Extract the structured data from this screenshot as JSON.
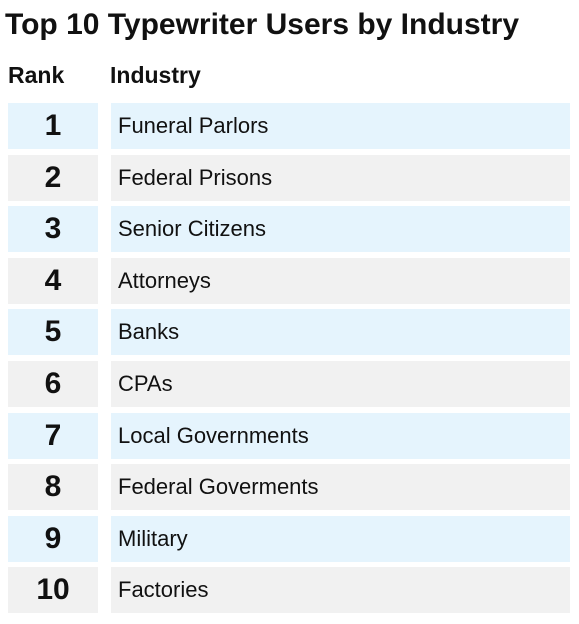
{
  "chart_data": {
    "type": "table",
    "title": "Top 10 Typewriter Users by Industry",
    "columns": [
      "Rank",
      "Industry"
    ],
    "rows": [
      {
        "rank": "1",
        "industry": "Funeral Parlors"
      },
      {
        "rank": "2",
        "industry": "Federal Prisons"
      },
      {
        "rank": "3",
        "industry": "Senior Citizens"
      },
      {
        "rank": "4",
        "industry": "Attorneys"
      },
      {
        "rank": "5",
        "industry": "Banks"
      },
      {
        "rank": "6",
        "industry": "CPAs"
      },
      {
        "rank": "7",
        "industry": "Local Governments"
      },
      {
        "rank": "8",
        "industry": "Federal Goverments"
      },
      {
        "rank": "9",
        "industry": "Military"
      },
      {
        "rank": "10",
        "industry": "Factories"
      }
    ],
    "row_colors": [
      "#e5f4fd",
      "#f1f1f1"
    ]
  }
}
